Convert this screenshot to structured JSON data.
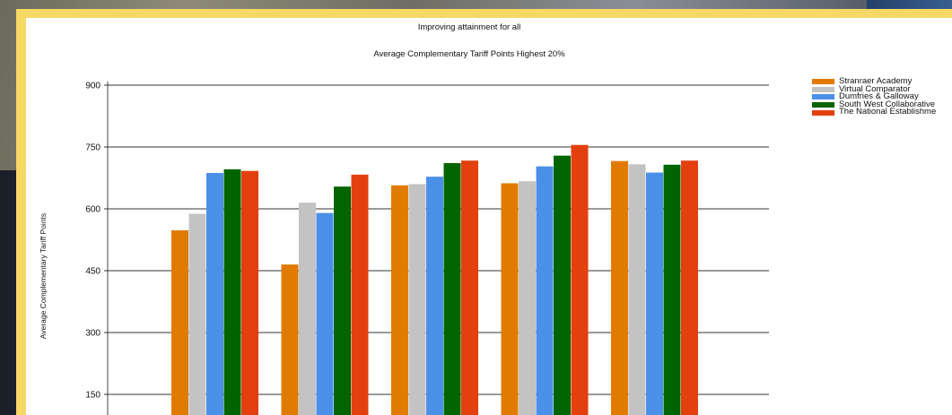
{
  "chart_data": {
    "type": "bar",
    "title": "Improving attainment for all",
    "subtitle": "Average Complementary Tariff Points Highest 20%",
    "ylabel": "Average Complementary Tariff Points",
    "xlabel": "",
    "ylim": [
      100,
      900
    ],
    "yticks": [
      150,
      300,
      450,
      600,
      750,
      900
    ],
    "grid": true,
    "legend_position": "top-right",
    "categories": [
      "",
      "",
      "",
      "",
      ""
    ],
    "series": [
      {
        "name": "Stranraer Academy",
        "color": "#e07b00",
        "values": [
          548,
          465,
          657,
          662,
          716
        ]
      },
      {
        "name": "Virtual Comparator",
        "color": "#c3c3c3",
        "values": [
          588,
          615,
          660,
          667,
          708
        ]
      },
      {
        "name": "Dumfries & Galloway",
        "color": "#4a90e8",
        "values": [
          687,
          590,
          678,
          703,
          688
        ]
      },
      {
        "name": "South West Collaborative",
        "color": "#006400",
        "values": [
          696,
          654,
          711,
          729,
          707
        ]
      },
      {
        "name": "The National Establishme",
        "color": "#e3400e",
        "values": [
          692,
          683,
          717,
          755,
          717
        ]
      }
    ]
  }
}
